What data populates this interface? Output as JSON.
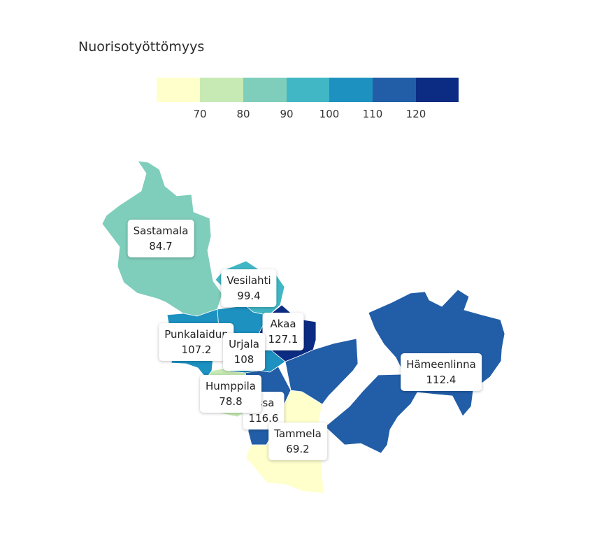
{
  "title": "Nuorisotyöttömyys",
  "legend": {
    "colors": [
      "#ffffcc",
      "#c7e9b4",
      "#7fcdbb",
      "#41b6c4",
      "#1d91c0",
      "#225ea8",
      "#0c2c84"
    ],
    "ticks": [
      "70",
      "80",
      "90",
      "100",
      "110",
      "120"
    ]
  },
  "regions": [
    {
      "id": "sastamala",
      "name": "Sastamala",
      "value": "84.7",
      "color": "#7fcdbb"
    },
    {
      "id": "vesilahti",
      "name": "Vesilahti",
      "value": "99.4",
      "color": "#41b6c4"
    },
    {
      "id": "akaa",
      "name": "Akaa",
      "value": "127.1",
      "color": "#0c2c84"
    },
    {
      "id": "punkalaidun",
      "name": "Punkalaidun",
      "value": "107.2",
      "color": "#1d91c0"
    },
    {
      "id": "urjala",
      "name": "Urjala",
      "value": "108",
      "color": "#1d91c0"
    },
    {
      "id": "humppila",
      "name": "Humppila",
      "value": "78.8",
      "color": "#c7e9b4"
    },
    {
      "id": "forssa",
      "name": "rssa",
      "value": "116.6",
      "color": "#225ea8"
    },
    {
      "id": "tammela",
      "name": "Tammela",
      "value": "69.2",
      "color": "#ffffcc"
    },
    {
      "id": "hameenlinna",
      "name": "Hämeenlinna",
      "value": "112.4",
      "color": "#225ea8"
    }
  ]
}
